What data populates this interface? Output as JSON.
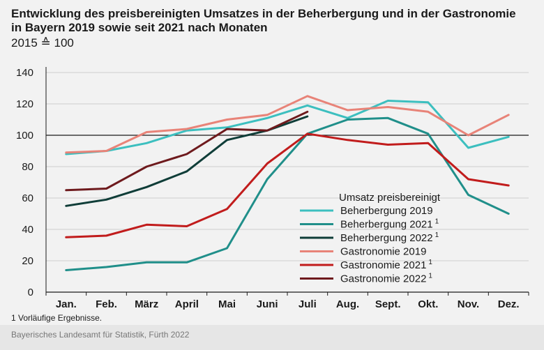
{
  "title": "Entwicklung des preisbereinigten Umsatzes in der Beherbergung und in der Gastronomie in Bayern 2019 sowie seit 2021 nach Monaten",
  "subtitle": "2015 ≙ 100",
  "footnote": "1  Vorläufige Ergebnisse.",
  "source": "Bayerisches Landesamt für Statistik, Fürth 2022",
  "chart_data": {
    "type": "line",
    "categories": [
      "Jan.",
      "Feb.",
      "März",
      "April",
      "Mai",
      "Juni",
      "Juli",
      "Aug.",
      "Sept.",
      "Okt.",
      "Nov.",
      "Dez."
    ],
    "ylim": [
      0,
      140
    ],
    "yticks": [
      "0",
      "20",
      "40",
      "60",
      "80",
      "100",
      "120",
      "140"
    ],
    "reference_line": 100,
    "grid": true,
    "legend_title": "Umsatz preisbereinigt",
    "legend_position": "bottom-center",
    "series": [
      {
        "name": "Beherbergung 2019",
        "sup": "",
        "color": "#3cbfbf",
        "values": [
          88,
          90,
          95,
          103,
          105,
          111,
          119,
          111,
          122,
          121,
          92,
          99
        ]
      },
      {
        "name": "Beherbergung 2021",
        "sup": "1",
        "color": "#208f8a",
        "values": [
          14,
          16,
          19,
          19,
          28,
          72,
          101,
          110,
          111,
          101,
          62,
          50
        ]
      },
      {
        "name": "Beherbergung 2022",
        "sup": "1",
        "color": "#0f3d38",
        "values": [
          55,
          59,
          67,
          77,
          97,
          103,
          112,
          null,
          null,
          null,
          null,
          null
        ]
      },
      {
        "name": "Gastronomie 2019",
        "sup": "",
        "color": "#e88378",
        "values": [
          89,
          90,
          102,
          104,
          110,
          113,
          125,
          116,
          118,
          115,
          100,
          113
        ]
      },
      {
        "name": "Gastronomie 2021",
        "sup": "1",
        "color": "#c11c1c",
        "values": [
          35,
          36,
          43,
          42,
          53,
          82,
          101,
          97,
          94,
          95,
          72,
          68
        ]
      },
      {
        "name": "Gastronomie 2022",
        "sup": "1",
        "color": "#6e1a1d",
        "values": [
          65,
          66,
          80,
          88,
          104,
          103,
          115,
          null,
          null,
          null,
          null,
          null
        ]
      }
    ]
  }
}
